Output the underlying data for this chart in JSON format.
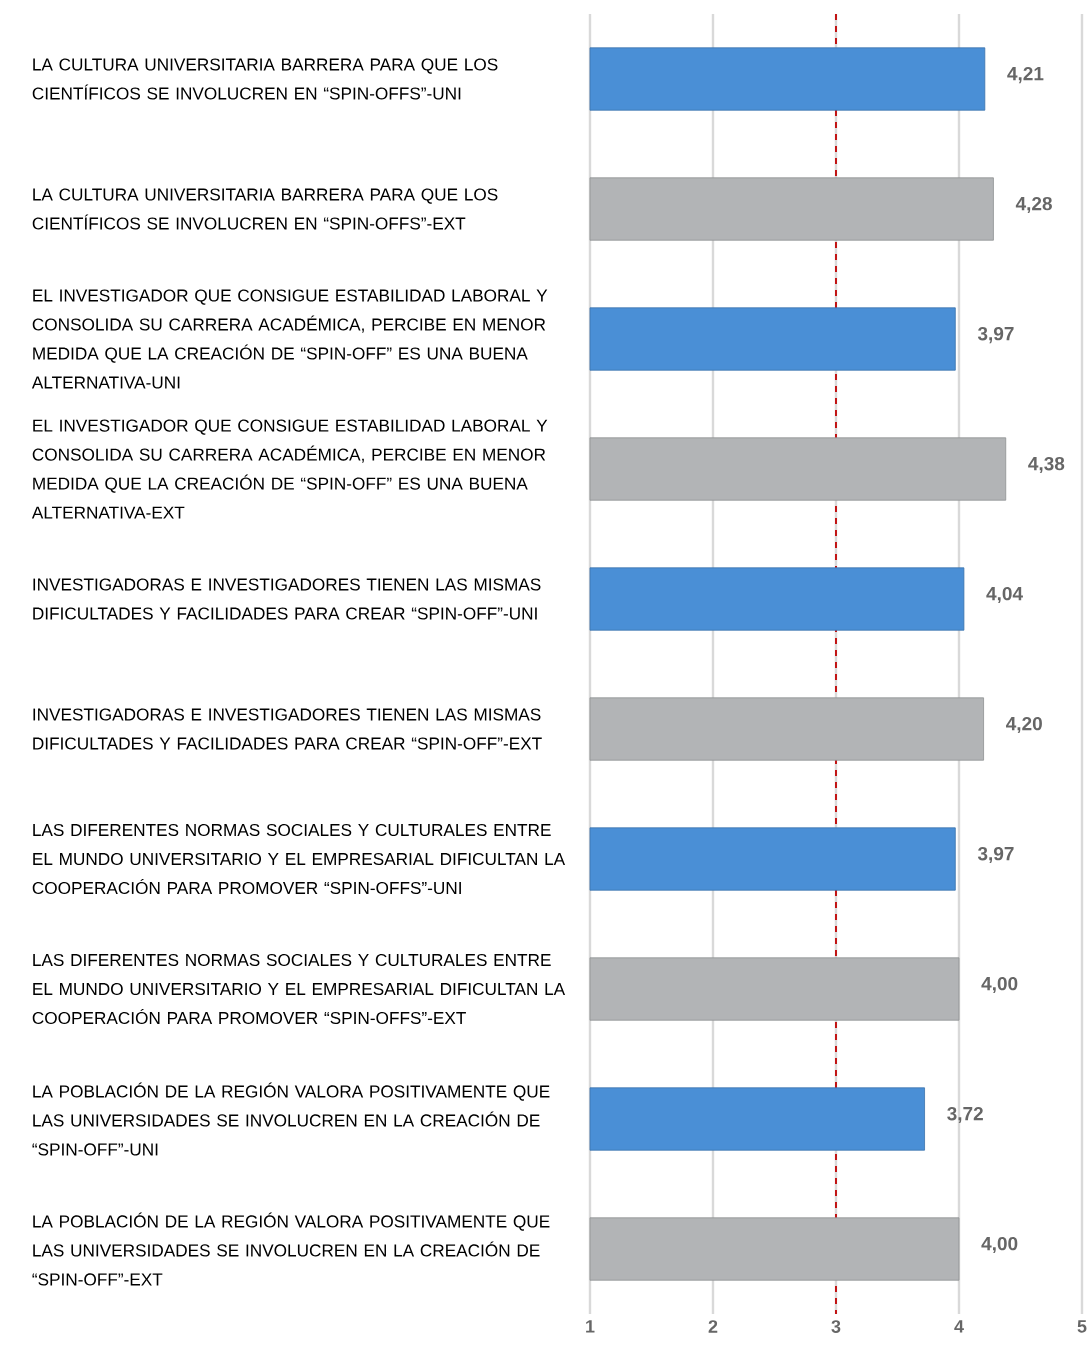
{
  "chart_data": {
    "type": "bar",
    "orientation": "horizontal",
    "categories": [
      "LA CULTURA UNIVERSITARIA BARRERA PARA QUE LOS CIENTÍFICOS SE INVOLUCREN EN “SPIN-OFFS”-UNI",
      "LA CULTURA UNIVERSITARIA BARRERA PARA QUE LOS CIENTÍFICOS SE INVOLUCREN EN “SPIN-OFFS”-EXT",
      "EL INVESTIGADOR QUE CONSIGUE ESTABILIDAD LABORAL Y CONSOLIDA SU CARRERA ACADÉMICA, PERCIBE EN MENOR MEDIDA QUE LA CREACIÓN DE “SPIN-OFF” ES UNA BUENA ALTERNATIVA-UNI",
      "EL INVESTIGADOR QUE CONSIGUE ESTABILIDAD LABORAL Y CONSOLIDA SU CARRERA ACADÉMICA, PERCIBE EN MENOR MEDIDA QUE LA CREACIÓN DE “SPIN-OFF” ES UNA BUENA ALTERNATIVA-EXT",
      "INVESTIGADORAS E INVESTIGADORES TIENEN LAS MISMAS DIFICULTADES Y FACILIDADES PARA CREAR “SPIN-OFF”-UNI",
      "INVESTIGADORAS E INVESTIGADORES TIENEN LAS MISMAS DIFICULTADES Y FACILIDADES PARA CREAR “SPIN-OFF”-EXT",
      "LAS DIFERENTES NORMAS SOCIALES Y CULTURALES ENTRE EL MUNDO UNIVERSITARIO Y EL EMPRESARIAL DIFICULTAN LA COOPERACIÓN PARA PROMOVER “SPIN-OFFS”-UNI",
      "LAS DIFERENTES NORMAS SOCIALES Y CULTURALES ENTRE EL MUNDO UNIVERSITARIO Y EL EMPRESARIAL DIFICULTAN LA COOPERACIÓN PARA PROMOVER “SPIN-OFFS”-EXT",
      "LA POBLACIÓN DE LA REGIÓN VALORA POSITIVAMENTE QUE LAS UNIVERSIDADES SE INVOLUCREN EN LA CREACIÓN DE “SPIN-OFF”-UNI",
      "LA POBLACIÓN DE LA REGIÓN VALORA POSITIVAMENTE QUE LAS UNIVERSIDADES SE INVOLUCREN EN LA CREACIÓN DE “SPIN-OFF”-EXT"
    ],
    "values": [
      4.21,
      4.28,
      3.97,
      4.38,
      4.04,
      4.2,
      3.97,
      4.0,
      3.72,
      4.0
    ],
    "value_labels": [
      "4,21",
      "4,28",
      "3,97",
      "4,38",
      "4,04",
      "4,20",
      "3,97",
      "4,00",
      "3,72",
      "4,00"
    ],
    "colors": [
      "#4a8fd6",
      "#b2b4b6",
      "#4a8fd6",
      "#b2b4b6",
      "#4a8fd6",
      "#b2b4b6",
      "#4a8fd6",
      "#b2b4b6",
      "#4a8fd6",
      "#b2b4b6"
    ],
    "xlim": [
      1,
      5
    ],
    "xticks": [
      1,
      2,
      3,
      4,
      5
    ],
    "grid": "x",
    "ref_lines": [
      {
        "axis": "x",
        "value": 3,
        "color": "#c00000",
        "line_style": "dashed"
      }
    ]
  }
}
